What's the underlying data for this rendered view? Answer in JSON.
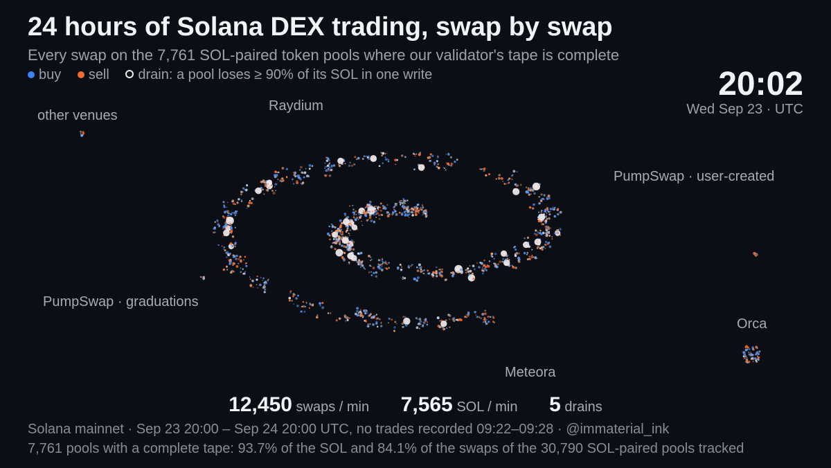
{
  "header": {
    "title": "24 hours of Solana DEX trading, swap by swap",
    "subtitle": "Every swap on the 7,761 SOL-paired token pools where our validator's tape is complete"
  },
  "legend": {
    "buy": "buy",
    "sell": "sell",
    "drain": "drain: a pool loses ≥ 90% of its SOL in one write"
  },
  "clock": {
    "time": "20:02",
    "date": "Wed Sep 23 · UTC"
  },
  "venues": {
    "other": "other venues",
    "raydium": "Raydium",
    "pumpswap_user": "PumpSwap · user-created",
    "pumpswap_grad": "PumpSwap · graduations",
    "orca": "Orca",
    "meteora": "Meteora"
  },
  "stats": [
    {
      "value": "12,450",
      "unit": "swaps / min"
    },
    {
      "value": "7,565",
      "unit": "SOL / min"
    },
    {
      "value": "5",
      "unit": "drains"
    }
  ],
  "footer": [
    "Solana mainnet · Sep 23 20:00 – Sep 24 20:00 UTC, no trades recorded 09:22–09:28 · @immaterial_ink",
    "7,761 pools with a complete tape: 93.7% of the SOL and 84.1% of the swaps of the 30,790 SOL-paired pools tracked"
  ]
}
